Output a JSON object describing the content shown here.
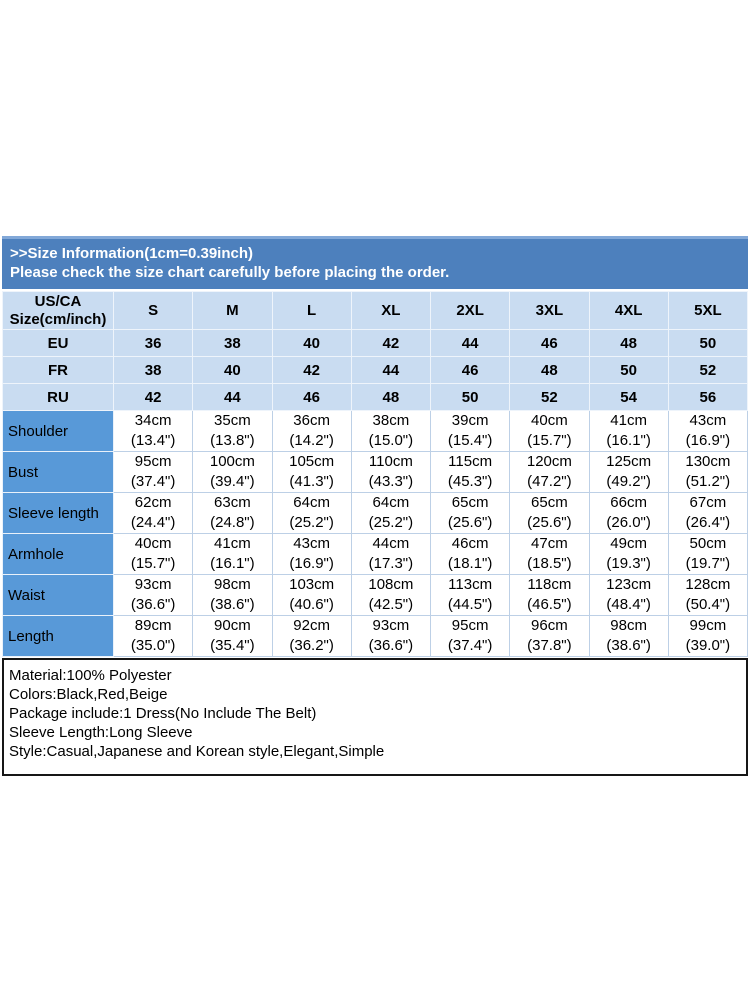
{
  "banner": {
    "title": ">>Size Information(1cm=0.39inch)",
    "subtitle": "Please check the size chart carefully before placing the order."
  },
  "table": {
    "corner": {
      "line1": "US/CA",
      "line2": "Size(cm/inch)"
    },
    "sizes": [
      "S",
      "M",
      "L",
      "XL",
      "2XL",
      "3XL",
      "4XL",
      "5XL"
    ],
    "regions": [
      {
        "label": "EU",
        "values": [
          "36",
          "38",
          "40",
          "42",
          "44",
          "46",
          "48",
          "50"
        ]
      },
      {
        "label": "FR",
        "values": [
          "38",
          "40",
          "42",
          "44",
          "46",
          "48",
          "50",
          "52"
        ]
      },
      {
        "label": "RU",
        "values": [
          "42",
          "44",
          "46",
          "48",
          "50",
          "52",
          "54",
          "56"
        ]
      }
    ],
    "measurements": [
      {
        "label": "Shoulder",
        "cm": [
          "34cm",
          "35cm",
          "36cm",
          "38cm",
          "39cm",
          "40cm",
          "41cm",
          "43cm"
        ],
        "inch": [
          "(13.4\")",
          "(13.8\")",
          "(14.2\")",
          "(15.0\")",
          "(15.4\")",
          "(15.7\")",
          "(16.1\")",
          "(16.9\")"
        ]
      },
      {
        "label": "Bust",
        "cm": [
          "95cm",
          "100cm",
          "105cm",
          "110cm",
          "115cm",
          "120cm",
          "125cm",
          "130cm"
        ],
        "inch": [
          "(37.4\")",
          "(39.4\")",
          "(41.3\")",
          "(43.3\")",
          "(45.3\")",
          "(47.2\")",
          "(49.2\")",
          "(51.2\")"
        ]
      },
      {
        "label": "Sleeve length",
        "cm": [
          "62cm",
          "63cm",
          "64cm",
          "64cm",
          "65cm",
          "65cm",
          "66cm",
          "67cm"
        ],
        "inch": [
          "(24.4\")",
          "(24.8\")",
          "(25.2\")",
          "(25.2\")",
          "(25.6\")",
          "(25.6\")",
          "(26.0\")",
          "(26.4\")"
        ]
      },
      {
        "label": "Armhole",
        "cm": [
          "40cm",
          "41cm",
          "43cm",
          "44cm",
          "46cm",
          "47cm",
          "49cm",
          "50cm"
        ],
        "inch": [
          "(15.7\")",
          "(16.1\")",
          "(16.9\")",
          "(17.3\")",
          "(18.1\")",
          "(18.5\")",
          "(19.3\")",
          "(19.7\")"
        ]
      },
      {
        "label": "Waist",
        "cm": [
          "93cm",
          "98cm",
          "103cm",
          "108cm",
          "113cm",
          "118cm",
          "123cm",
          "128cm"
        ],
        "inch": [
          "(36.6\")",
          "(38.6\")",
          "(40.6\")",
          "(42.5\")",
          "(44.5\")",
          "(46.5\")",
          "(48.4\")",
          "(50.4\")"
        ]
      },
      {
        "label": "Length",
        "cm": [
          "89cm",
          "90cm",
          "92cm",
          "93cm",
          "95cm",
          "96cm",
          "98cm",
          "99cm"
        ],
        "inch": [
          "(35.0\")",
          "(35.4\")",
          "(36.2\")",
          "(36.6\")",
          "(37.4\")",
          "(37.8\")",
          "(38.6\")",
          "(39.0\")"
        ]
      }
    ]
  },
  "info": {
    "lines": [
      "Material:100% Polyester",
      "Colors:Black,Red,Beige",
      "Package include:1 Dress(No Include The Belt)",
      "Sleeve Length:Long Sleeve",
      "Style:Casual,Japanese and Korean style,Elegant,Simple"
    ]
  },
  "colors": {
    "banner_blue": "#4d80bd",
    "banner_top_edge": "#82a8d8",
    "light_blue_cell": "#c9dcf1",
    "label_column_blue": "#5899d8",
    "info_border": "#161616",
    "text_on_banner": "#ffffff"
  }
}
